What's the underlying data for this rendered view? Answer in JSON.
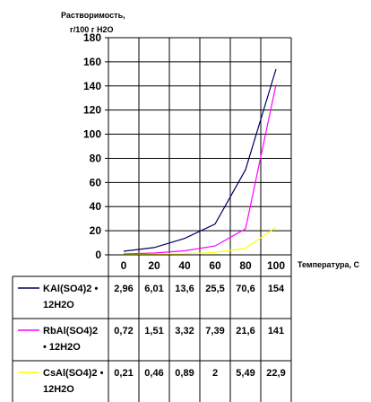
{
  "chart_data": {
    "type": "line",
    "title": "",
    "ylabel_lines": [
      "Растворимость,",
      "г/100 г H2O"
    ],
    "xlabel": "Температура, C",
    "ylim": [
      0,
      180
    ],
    "yticks": [
      0,
      20,
      40,
      60,
      80,
      100,
      120,
      140,
      160,
      180
    ],
    "categories": [
      "0",
      "20",
      "40",
      "60",
      "80",
      "100"
    ],
    "x": [
      0,
      20,
      40,
      60,
      80,
      100
    ],
    "grid": true,
    "legend_position": "data-table-below",
    "series": [
      {
        "name_lines": [
          "KAl(SO4)2 •",
          "12H2O"
        ],
        "color": "#000066",
        "values": [
          2.96,
          6.01,
          13.6,
          25.5,
          70.6,
          154
        ],
        "labels": [
          "2,96",
          "6,01",
          "13,6",
          "25,5",
          "70,6",
          "154"
        ]
      },
      {
        "name_lines": [
          "RbAl(SO4)2",
          "• 12H2O"
        ],
        "color": "#ff00ff",
        "values": [
          0.72,
          1.51,
          3.32,
          7.39,
          21.6,
          141
        ],
        "labels": [
          "0,72",
          "1,51",
          "3,32",
          "7,39",
          "21,6",
          "141"
        ]
      },
      {
        "name_lines": [
          "CsAl(SO4)2 •",
          "12H2O"
        ],
        "color": "#ffff00",
        "values": [
          0.21,
          0.46,
          0.89,
          2,
          5.49,
          22.9
        ],
        "labels": [
          "0,21",
          "0,46",
          "0,89",
          "2",
          "5,49",
          "22,9"
        ]
      }
    ]
  }
}
